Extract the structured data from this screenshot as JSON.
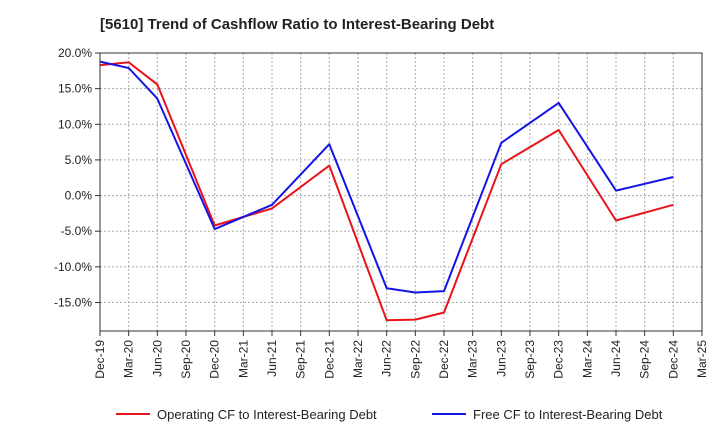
{
  "chart_data": {
    "type": "line",
    "title": "[5610]  Trend of Cashflow Ratio to Interest-Bearing Debt",
    "x_ticks": [
      "Dec-19",
      "Mar-20",
      "Jun-20",
      "Sep-20",
      "Dec-20",
      "Mar-21",
      "Jun-21",
      "Sep-21",
      "Dec-21",
      "Mar-22",
      "Jun-22",
      "Sep-22",
      "Dec-22",
      "Mar-23",
      "Jun-23",
      "Sep-23",
      "Dec-23",
      "Mar-24",
      "Jun-24",
      "Sep-24",
      "Dec-24",
      "Mar-25"
    ],
    "y_ticks": [
      "20.0%",
      "15.0%",
      "10.0%",
      "5.0%",
      "0.0%",
      "-5.0%",
      "-10.0%",
      "-15.0%"
    ],
    "y_tick_values": [
      20,
      15,
      10,
      5,
      0,
      -5,
      -10,
      -15
    ],
    "ylim": [
      -19,
      20
    ],
    "grid": true,
    "legend_position": "bottom",
    "series": [
      {
        "name": "Operating CF to Interest-Bearing Debt",
        "color": "#e8141a",
        "points": [
          {
            "x": "Dec-19",
            "y": 18.3
          },
          {
            "x": "Mar-20",
            "y": 18.7
          },
          {
            "x": "Jun-20",
            "y": 15.6
          },
          {
            "x": "Dec-20",
            "y": -4.2
          },
          {
            "x": "Jun-21",
            "y": -1.8
          },
          {
            "x": "Dec-21",
            "y": 4.2
          },
          {
            "x": "Jun-22",
            "y": -17.5
          },
          {
            "x": "Sep-22",
            "y": -17.4
          },
          {
            "x": "Dec-22",
            "y": -16.4
          },
          {
            "x": "Jun-23",
            "y": 4.4
          },
          {
            "x": "Dec-23",
            "y": 9.2
          },
          {
            "x": "Jun-24",
            "y": -3.5
          },
          {
            "x": "Dec-24",
            "y": -1.3
          }
        ]
      },
      {
        "name": "Free CF to Interest-Bearing Debt",
        "color": "#1414e6",
        "points": [
          {
            "x": "Dec-19",
            "y": 18.8
          },
          {
            "x": "Mar-20",
            "y": 17.9
          },
          {
            "x": "Jun-20",
            "y": 13.6
          },
          {
            "x": "Dec-20",
            "y": -4.7
          },
          {
            "x": "Jun-21",
            "y": -1.3
          },
          {
            "x": "Dec-21",
            "y": 7.2
          },
          {
            "x": "Jun-22",
            "y": -13.0
          },
          {
            "x": "Sep-22",
            "y": -13.6
          },
          {
            "x": "Dec-22",
            "y": -13.4
          },
          {
            "x": "Jun-23",
            "y": 7.4
          },
          {
            "x": "Dec-23",
            "y": 13.0
          },
          {
            "x": "Jun-24",
            "y": 0.7
          },
          {
            "x": "Dec-24",
            "y": 2.6
          }
        ]
      }
    ]
  }
}
